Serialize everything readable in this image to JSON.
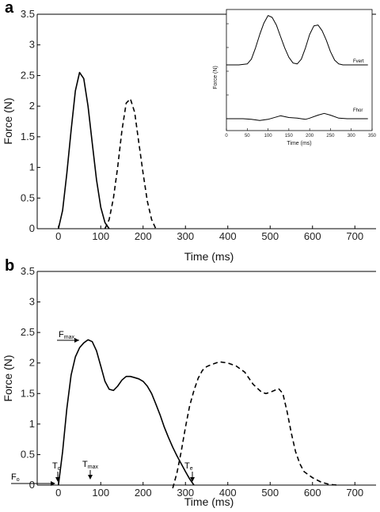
{
  "chart_data": [
    {
      "type": "line",
      "panel_label": "a",
      "xlabel": "Time (ms)",
      "ylabel": "Force (N)",
      "xlim": [
        -50,
        750
      ],
      "ylim": [
        0,
        3.5
      ],
      "xticks": [
        0,
        100,
        200,
        300,
        400,
        500,
        600,
        700
      ],
      "yticks": [
        0,
        0.5,
        1,
        1.5,
        2,
        2.5,
        3,
        3.5
      ],
      "grid": false,
      "legend": "none",
      "series": [
        {
          "style": "solid",
          "x": [
            0,
            10,
            20,
            30,
            40,
            50,
            60,
            70,
            80,
            90,
            100,
            110,
            120
          ],
          "y": [
            0,
            0.3,
            0.9,
            1.6,
            2.25,
            2.55,
            2.45,
            2.0,
            1.4,
            0.8,
            0.35,
            0.1,
            0
          ]
        },
        {
          "style": "dashed",
          "x": [
            110,
            120,
            130,
            140,
            150,
            160,
            170,
            180,
            190,
            200,
            210,
            220,
            230
          ],
          "y": [
            0,
            0.15,
            0.5,
            1.0,
            1.6,
            2.05,
            2.12,
            1.9,
            1.4,
            0.9,
            0.45,
            0.15,
            0
          ]
        }
      ],
      "inset": {
        "xlabel": "Time (ms)",
        "ylabel": "Force (N)",
        "xlim": [
          0,
          350
        ],
        "xticks": [
          0,
          50,
          100,
          150,
          200,
          250,
          300,
          350
        ],
        "series": [
          {
            "name": "Fvert",
            "x": [
              0,
              30,
              50,
              60,
              70,
              80,
              90,
              100,
              110,
              120,
              130,
              140,
              150,
              160,
              170,
              180,
              190,
              200,
              210,
              220,
              230,
              240,
              250,
              260,
              270,
              280,
              300,
              320,
              340
            ],
            "y": [
              0,
              0,
              0.05,
              0.3,
              0.9,
              1.6,
              2.2,
              2.6,
              2.5,
              2.1,
              1.5,
              0.9,
              0.4,
              0.1,
              0.05,
              0.3,
              0.9,
              1.6,
              2.05,
              2.1,
              1.8,
              1.3,
              0.7,
              0.25,
              0.05,
              0,
              0,
              0,
              0
            ]
          },
          {
            "name": "Fhor",
            "x": [
              0,
              40,
              60,
              80,
              100,
              120,
              130,
              150,
              170,
              190,
              200,
              220,
              235,
              250,
              270,
              290,
              320,
              340
            ],
            "y": [
              0,
              0,
              -0.05,
              -0.15,
              -0.05,
              0.15,
              0.25,
              0.1,
              0.05,
              -0.05,
              0.05,
              0.3,
              0.45,
              0.3,
              0.05,
              0,
              0,
              0
            ]
          }
        ]
      }
    },
    {
      "type": "line",
      "panel_label": "b",
      "xlabel": "Time (ms)",
      "ylabel": "Force (N)",
      "xlim": [
        -50,
        750
      ],
      "ylim": [
        0,
        3.5
      ],
      "xticks": [
        0,
        100,
        200,
        300,
        400,
        500,
        600,
        700
      ],
      "yticks": [
        0,
        0.5,
        1,
        1.5,
        2,
        2.5,
        3,
        3.5
      ],
      "grid": false,
      "legend": "none",
      "series": [
        {
          "style": "solid",
          "x": [
            0,
            10,
            20,
            30,
            40,
            50,
            60,
            70,
            80,
            90,
            100,
            110,
            120,
            130,
            140,
            150,
            160,
            170,
            180,
            190,
            200,
            210,
            220,
            230,
            240,
            250,
            260,
            270,
            280,
            290,
            300,
            310,
            320
          ],
          "y": [
            0,
            0.55,
            1.25,
            1.8,
            2.1,
            2.25,
            2.33,
            2.38,
            2.35,
            2.2,
            1.95,
            1.7,
            1.57,
            1.55,
            1.62,
            1.72,
            1.78,
            1.78,
            1.76,
            1.74,
            1.7,
            1.62,
            1.5,
            1.33,
            1.15,
            0.95,
            0.78,
            0.62,
            0.48,
            0.35,
            0.22,
            0.1,
            0
          ]
        },
        {
          "style": "dashed",
          "x": [
            270,
            280,
            290,
            300,
            310,
            320,
            330,
            340,
            350,
            360,
            380,
            400,
            420,
            440,
            460,
            480,
            490,
            500,
            510,
            520,
            530,
            540,
            550,
            560,
            570,
            580,
            600,
            620,
            640,
            660
          ],
          "y": [
            -0.05,
            0.2,
            0.55,
            0.95,
            1.3,
            1.55,
            1.75,
            1.88,
            1.94,
            1.97,
            2.02,
            2.0,
            1.95,
            1.85,
            1.65,
            1.52,
            1.5,
            1.52,
            1.55,
            1.58,
            1.5,
            1.2,
            0.85,
            0.55,
            0.35,
            0.22,
            0.12,
            0.05,
            0.01,
            0
          ]
        }
      ],
      "annotations": [
        {
          "label": "F",
          "subscript": "max"
        },
        {
          "label": "T",
          "subscript": "o"
        },
        {
          "label": "T",
          "subscript": "max"
        },
        {
          "label": "T",
          "subscript": "e"
        },
        {
          "label": "F",
          "subscript": "o"
        }
      ]
    }
  ]
}
